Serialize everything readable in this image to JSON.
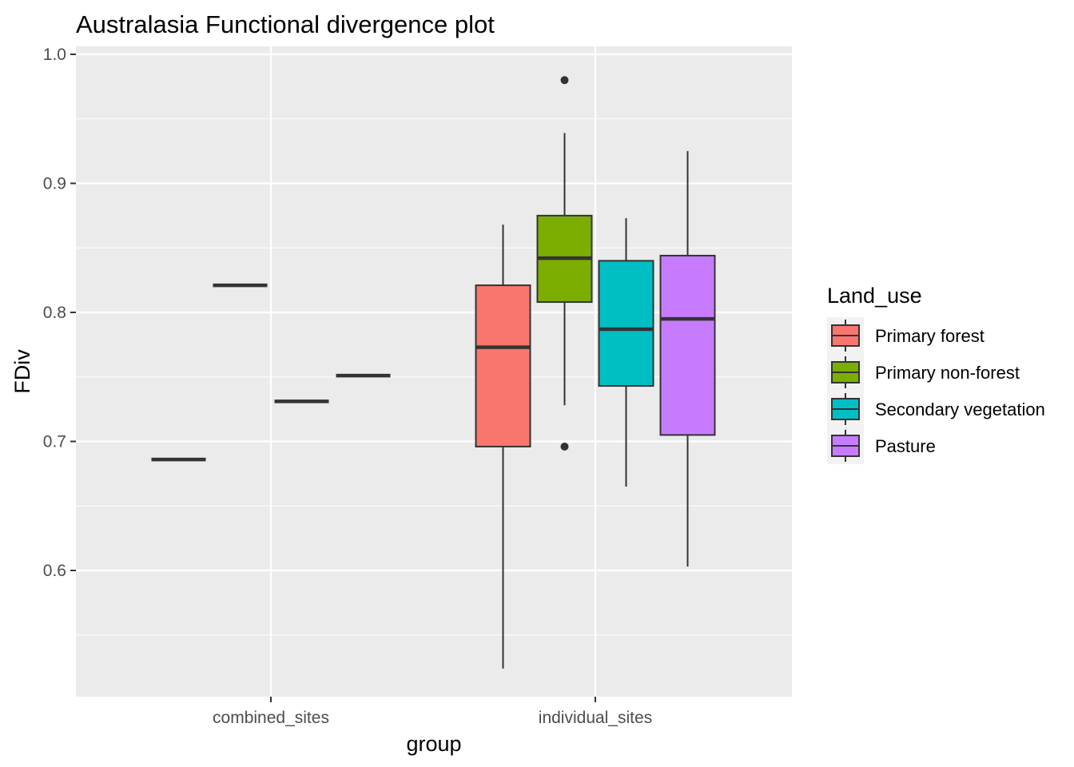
{
  "chart_data": {
    "type": "boxplot",
    "title": "Australasia Functional divergence plot",
    "xlabel": "group",
    "ylabel": "FDiv",
    "ylim": [
      0.5,
      1.0
    ],
    "y_ticks": [
      0.6,
      0.7,
      0.8,
      0.9,
      1.0
    ],
    "y_tick_labels": [
      "0.6",
      "0.7",
      "0.8",
      "0.9",
      "1.0"
    ],
    "categories": [
      "combined_sites",
      "individual_sites"
    ],
    "grid": true,
    "legend_position": "right",
    "legend_title": "Land_use",
    "series": [
      {
        "name": "Primary forest",
        "color": "#F8766D",
        "boxes": [
          {
            "min": 0.686,
            "q1": 0.686,
            "median": 0.686,
            "q3": 0.686,
            "max": 0.686,
            "outliers": []
          },
          {
            "min": 0.524,
            "q1": 0.696,
            "median": 0.773,
            "q3": 0.821,
            "max": 0.868,
            "outliers": []
          }
        ]
      },
      {
        "name": "Primary non-forest",
        "color": "#7CAE00",
        "boxes": [
          {
            "min": 0.821,
            "q1": 0.821,
            "median": 0.821,
            "q3": 0.821,
            "max": 0.821,
            "outliers": []
          },
          {
            "min": 0.728,
            "q1": 0.808,
            "median": 0.842,
            "q3": 0.875,
            "max": 0.939,
            "outliers": [
              0.98,
              0.696
            ]
          }
        ]
      },
      {
        "name": "Secondary vegetation",
        "color": "#00BFC4",
        "boxes": [
          {
            "min": 0.731,
            "q1": 0.731,
            "median": 0.731,
            "q3": 0.731,
            "max": 0.731,
            "outliers": []
          },
          {
            "min": 0.665,
            "q1": 0.743,
            "median": 0.787,
            "q3": 0.84,
            "max": 0.873,
            "outliers": []
          }
        ]
      },
      {
        "name": "Pasture",
        "color": "#C77CFF",
        "boxes": [
          {
            "min": 0.751,
            "q1": 0.751,
            "median": 0.751,
            "q3": 0.751,
            "max": 0.751,
            "outliers": []
          },
          {
            "min": 0.603,
            "q1": 0.705,
            "median": 0.795,
            "q3": 0.844,
            "max": 0.925,
            "outliers": []
          }
        ]
      }
    ]
  }
}
